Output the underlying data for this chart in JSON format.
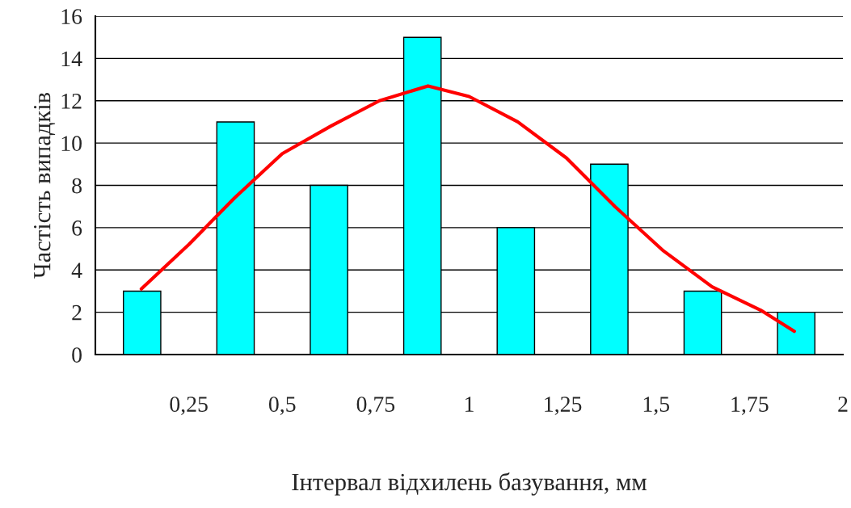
{
  "chart_data": {
    "type": "bar",
    "xlabel": "Інтервал відхилень базування, мм",
    "ylabel": "Частість випадків",
    "x": [
      0.125,
      0.375,
      0.625,
      0.875,
      1.125,
      1.375,
      1.625,
      1.875
    ],
    "xlim": [
      0,
      2
    ],
    "xticks": [
      {
        "value": 0,
        "label": null
      },
      {
        "value": 0.25,
        "label": "0,25"
      },
      {
        "value": 0.5,
        "label": "0,5"
      },
      {
        "value": 0.75,
        "label": "0,75"
      },
      1,
      {
        "value": 1.25,
        "label": "1,25"
      },
      {
        "value": 1.5,
        "label": "1,5"
      },
      {
        "value": 1.75,
        "label": "1,75"
      },
      2
    ],
    "ylim": [
      0,
      16
    ],
    "yticks": [
      0,
      2,
      4,
      6,
      8,
      10,
      12,
      14,
      16
    ],
    "grid": "y",
    "series": [
      {
        "color": "#00ffff",
        "values": [
          3,
          11,
          8,
          15,
          6,
          9,
          3,
          2
        ]
      },
      {
        "type": "line",
        "color": "#ff0000",
        "x": [
          0.123,
          0.25,
          0.372,
          0.5,
          0.63,
          0.76,
          0.89,
          1.0,
          1.13,
          1.26,
          1.39,
          1.52,
          1.65,
          1.78,
          1.87
        ],
        "values": [
          3.1,
          5.2,
          7.4,
          9.5,
          10.8,
          12.0,
          12.7,
          12.2,
          11.0,
          9.3,
          7.0,
          4.9,
          3.2,
          2.1,
          1.1
        ]
      }
    ]
  }
}
